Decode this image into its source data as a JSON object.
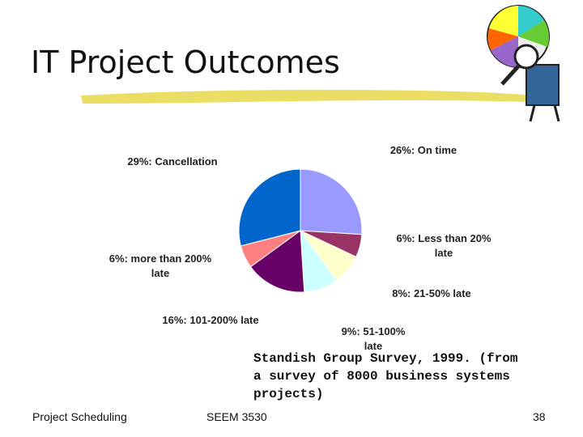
{
  "slide": {
    "title": "IT Project Outcomes",
    "source_note": "Standish Group Survey, 1999. (from a survey of 8000 business systems projects)",
    "footer_left": "Project Scheduling",
    "footer_center": "SEEM 3530",
    "page_number": "38"
  },
  "chart_data": {
    "type": "pie",
    "values": [
      26,
      6,
      8,
      9,
      16,
      6,
      29
    ],
    "value_labels": [
      "26%: On time",
      "6%: Less than 20% late",
      "8%: 21-50% late",
      "9%: 51-100% late",
      "16%: 101-200% late",
      "6%: more than 200% late",
      "29%: Cancellation"
    ],
    "colors": [
      "#9999ff",
      "#993366",
      "#ffffcc",
      "#ccffff",
      "#660066",
      "#ff8080",
      "#0066cc"
    ]
  }
}
